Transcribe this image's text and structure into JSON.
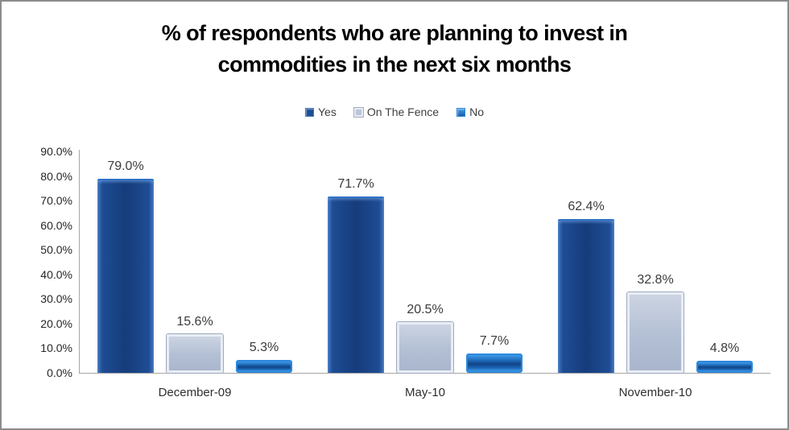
{
  "display": {
    "title_lines": [
      "% of respondents who are planning to invest in",
      "commodities in the next six months"
    ]
  },
  "chart_data": {
    "type": "bar",
    "title": "% of respondents who are planning to invest in commodities in the next six months",
    "xlabel": "",
    "ylabel": "",
    "ylim": [
      0,
      90
    ],
    "grid": false,
    "legend_position": "top",
    "y_ticks": [
      "0.0%",
      "10.0%",
      "20.0%",
      "30.0%",
      "40.0%",
      "50.0%",
      "60.0%",
      "70.0%",
      "80.0%",
      "90.0%"
    ],
    "categories": [
      "December-09",
      "May-10",
      "November-10"
    ],
    "series": [
      {
        "name": "Yes",
        "color": "#16407F",
        "values": [
          79.0,
          71.7,
          62.4
        ],
        "labels": [
          "79.0%",
          "71.7%",
          "62.4%"
        ]
      },
      {
        "name": "On The Fence",
        "color": "#B7C2D8",
        "values": [
          15.6,
          20.5,
          32.8
        ],
        "labels": [
          "15.6%",
          "20.5%",
          "32.8%"
        ]
      },
      {
        "name": "No",
        "color": "#1E6FC0",
        "values": [
          5.3,
          7.7,
          4.8
        ],
        "labels": [
          "5.3%",
          "7.7%",
          "4.8%"
        ]
      }
    ],
    "axis_color": "#A6A6A6",
    "label_color": "#3B3B3B"
  }
}
